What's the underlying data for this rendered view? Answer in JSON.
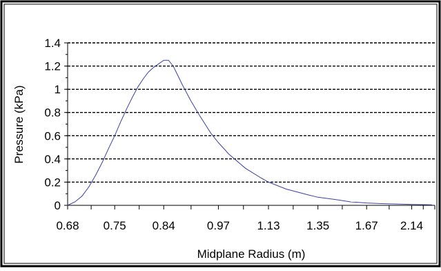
{
  "colors": {
    "frame": "#000000",
    "plot_background": "#ffffff",
    "grid": "#000000",
    "series_line": "#3b3fa6"
  },
  "chart_data": {
    "type": "line",
    "title": "",
    "xlabel": "Midplane Radius (m)",
    "ylabel": "Pressure (kPa)",
    "ylim": [
      0,
      1.4
    ],
    "yticks": [
      0,
      0.2,
      0.4,
      0.6,
      0.8,
      1,
      1.2,
      1.4
    ],
    "ytick_labels": [
      "0",
      "0.2",
      "0.4",
      "0.6",
      "0.8",
      "1",
      "1.2",
      "1.4"
    ],
    "x_axis_scale": "reciprocal (1/r) — tick labels show radius in m",
    "xlim": [
      0.68,
      2.5
    ],
    "xtick_labels": [
      "0.68",
      "0.75",
      "0.84",
      "0.97",
      "1.13",
      "1.35",
      "1.67",
      "2.14"
    ],
    "xtick_values": [
      0.68,
      0.75,
      0.84,
      0.97,
      1.13,
      1.35,
      1.67,
      2.14
    ],
    "grid": "horizontal dashed",
    "legend": "none",
    "series": [
      {
        "x": [
          0.68,
          0.69,
          0.7,
          0.71,
          0.72,
          0.73,
          0.74,
          0.75,
          0.76,
          0.77,
          0.78,
          0.79,
          0.8,
          0.81,
          0.82,
          0.83,
          0.84,
          0.85,
          0.86,
          0.87,
          0.88,
          0.9,
          0.92,
          0.95,
          0.97,
          1.0,
          1.05,
          1.1,
          1.13,
          1.2,
          1.3,
          1.35,
          1.45,
          1.55,
          1.67,
          1.8,
          2.0,
          2.14,
          2.3,
          2.45
        ],
        "y": [
          0.0,
          0.03,
          0.08,
          0.16,
          0.26,
          0.37,
          0.49,
          0.6,
          0.72,
          0.83,
          0.93,
          1.02,
          1.09,
          1.15,
          1.19,
          1.22,
          1.25,
          1.25,
          1.2,
          1.12,
          1.04,
          0.9,
          0.78,
          0.62,
          0.54,
          0.44,
          0.32,
          0.24,
          0.2,
          0.14,
          0.09,
          0.07,
          0.05,
          0.03,
          0.02,
          0.015,
          0.01,
          0.008,
          0.006,
          0.005
        ]
      }
    ]
  }
}
